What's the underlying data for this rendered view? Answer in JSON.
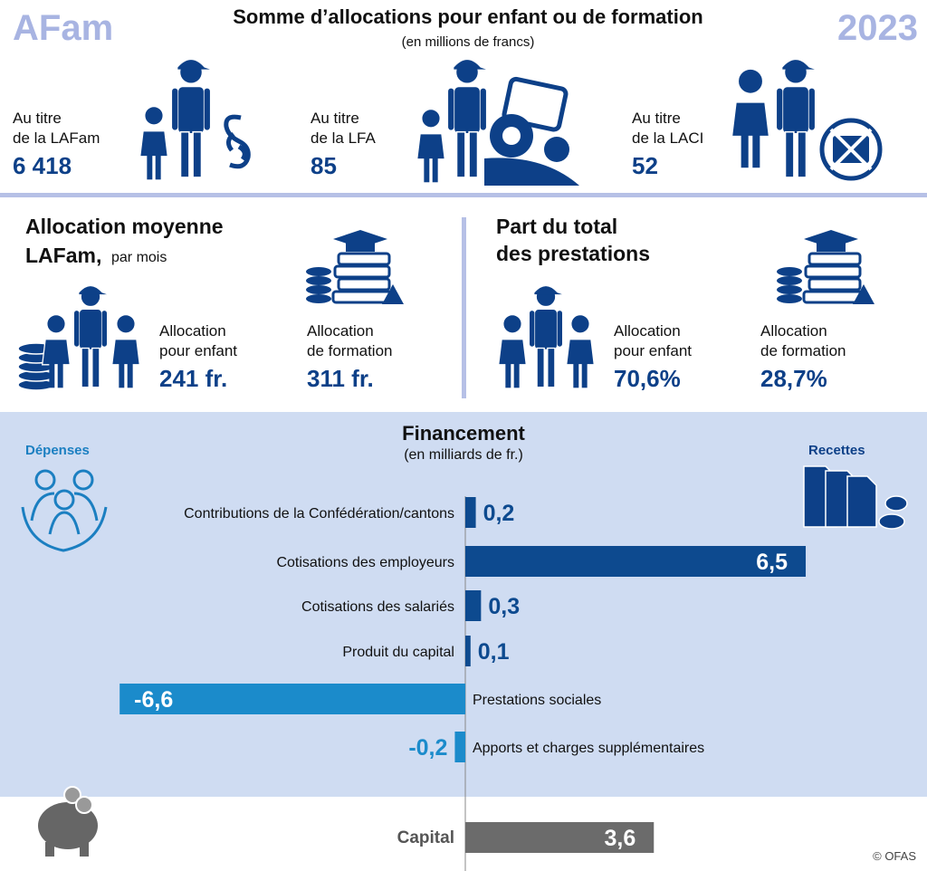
{
  "header": {
    "logo": "AFam",
    "year": "2023",
    "title": "Somme d’allocations pour enfant ou de formation",
    "subtitle": "(en millions de francs)"
  },
  "totals": [
    {
      "label_lines": [
        "Au titre",
        "de la LAFam"
      ],
      "value": "6 418"
    },
    {
      "label_lines": [
        "Au titre",
        "de la LFA"
      ],
      "value": "85"
    },
    {
      "label_lines": [
        "Au titre",
        "de la LACI"
      ],
      "value": "52"
    }
  ],
  "average": {
    "title": "Allocation moyenne",
    "title_bold": "LAFam,",
    "title_note": "par mois",
    "items": [
      {
        "label_lines": [
          "Allocation",
          "pour enfant"
        ],
        "value": "241 fr."
      },
      {
        "label_lines": [
          "Allocation",
          "de formation"
        ],
        "value": "311 fr."
      }
    ]
  },
  "share": {
    "title_lines": [
      "Part du total",
      "des prestations"
    ],
    "items": [
      {
        "label_lines": [
          "Allocation",
          "pour enfant"
        ],
        "value": "70,6%"
      },
      {
        "label_lines": [
          "Allocation",
          "de formation"
        ],
        "value": "28,7%"
      }
    ]
  },
  "chart_data": {
    "type": "bar",
    "orientation": "horizontal",
    "title": "Financement",
    "subtitle": "(en milliards de fr.)",
    "left_label": "Dépenses",
    "right_label": "Recettes",
    "categories": [
      "Contributions de la Confédération/cantons",
      "Cotisations des employeurs",
      "Cotisations des salariés",
      "Produit du capital",
      "Prestations sociales",
      "Apports et charges supplémentaires",
      "Capital"
    ],
    "values": [
      0.2,
      6.5,
      0.3,
      0.1,
      -6.6,
      -0.2,
      3.6
    ],
    "value_labels": [
      "0,2",
      "6,5",
      "0,3",
      "0,1",
      "-6,6",
      "-0,2",
      "3,6"
    ],
    "colors": [
      "#0d4a8f",
      "#0d4a8f",
      "#0d4a8f",
      "#0d4a8f",
      "#1b8bcb",
      "#1b8bcb",
      "#6b6b6b"
    ],
    "xlim": [
      -8.885,
      8.816
    ]
  },
  "footer": {
    "credit": "© OFAS"
  }
}
